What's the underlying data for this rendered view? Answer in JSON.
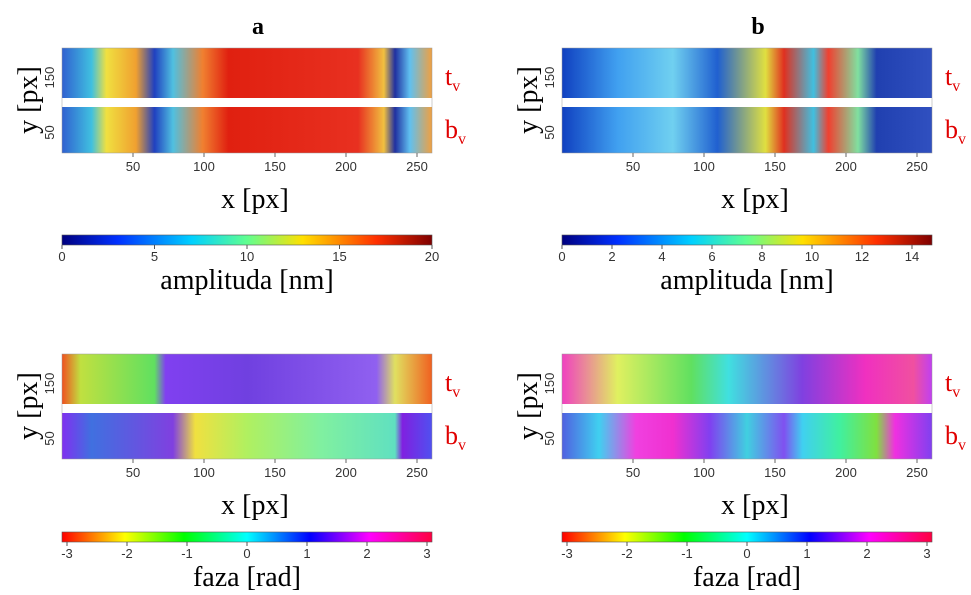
{
  "columns": [
    {
      "label": "a",
      "panels": [
        {
          "xlabel": "x [px]",
          "ylabel": "y [px]",
          "xticks": [
            50,
            100,
            150,
            200,
            250
          ],
          "yticks": [
            50,
            150
          ],
          "top_label": "t",
          "bottom_label": "b",
          "label_subscript": "v",
          "colorbar": {
            "label": "amplituda [nm]",
            "ticks": [
              0,
              5,
              10,
              15,
              20
            ]
          }
        },
        {
          "xlabel": "x [px]",
          "ylabel": "y [px]",
          "xticks": [
            50,
            100,
            150,
            200,
            250
          ],
          "yticks": [
            50,
            150
          ],
          "top_label": "t",
          "bottom_label": "b",
          "label_subscript": "v",
          "colorbar": {
            "label": "faza [rad]",
            "ticks": [
              -3,
              -2,
              -1,
              0,
              1,
              2,
              3
            ]
          }
        }
      ]
    },
    {
      "label": "b",
      "panels": [
        {
          "xlabel": "x [px]",
          "ylabel": "y [px]",
          "xticks": [
            50,
            100,
            150,
            200,
            250
          ],
          "yticks": [
            50,
            150
          ],
          "top_label": "t",
          "bottom_label": "b",
          "label_subscript": "v",
          "colorbar": {
            "label": "amplituda [nm]",
            "ticks": [
              0,
              2,
              4,
              6,
              8,
              10,
              12,
              14
            ]
          }
        },
        {
          "xlabel": "x [px]",
          "ylabel": "y [px]",
          "xticks": [
            50,
            100,
            150,
            200,
            250
          ],
          "yticks": [
            50,
            150
          ],
          "top_label": "t",
          "bottom_label": "b",
          "label_subscript": "v",
          "colorbar": {
            "label": "faza [rad]",
            "ticks": [
              -3,
              -2,
              -1,
              0,
              1,
              2,
              3
            ]
          }
        }
      ]
    }
  ]
}
